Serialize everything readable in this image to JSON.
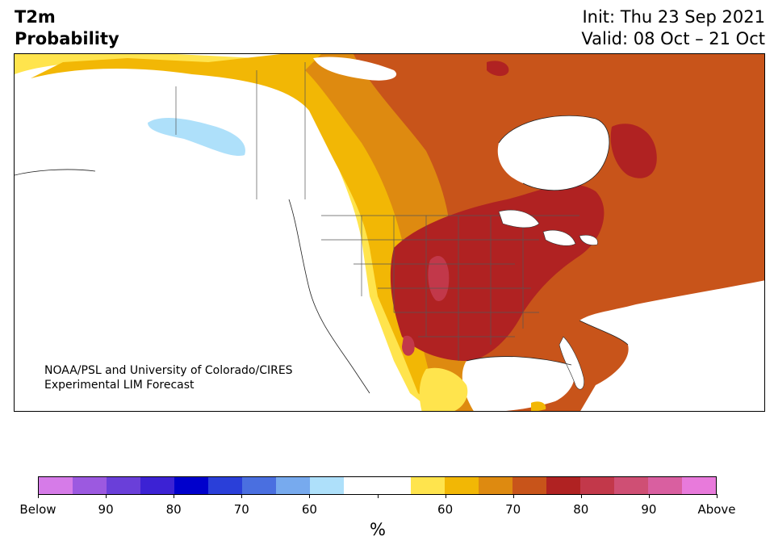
{
  "header": {
    "title_line1": "T2m",
    "title_line2": "Probability",
    "init": "Init: Thu 23 Sep 2021",
    "valid": "Valid: 08 Oct – 21 Oct"
  },
  "credit": {
    "line1": "NOAA/PSL and University of Colorado/CIRES",
    "line2": "Experimental LIM Forecast"
  },
  "colorbar": {
    "unit": "%",
    "colors": [
      "#d67be8",
      "#9c59e0",
      "#6a3fd9",
      "#3c22d4",
      "#0000cc",
      "#2a3fd9",
      "#4a6fe0",
      "#77aaee",
      "#aee0fa",
      "#ffffff",
      "#ffffff",
      "#ffe44d",
      "#f2b705",
      "#de8a10",
      "#c8541a",
      "#b02222",
      "#c2384a",
      "#cf4f74",
      "#d95fa0",
      "#e87adb"
    ],
    "labels": [
      "Below",
      "90",
      "80",
      "70",
      "60",
      "",
      "60",
      "70",
      "80",
      "90",
      "Above"
    ]
  },
  "map_colors": {
    "p60": "#ffe44d",
    "p70": "#f2b705",
    "p80": "#de8a10",
    "p90": "#c8541a",
    "a60": "#b02222",
    "a70": "#c2384a",
    "a80": "#cf4f74",
    "cold60": "#aee0fa"
  }
}
